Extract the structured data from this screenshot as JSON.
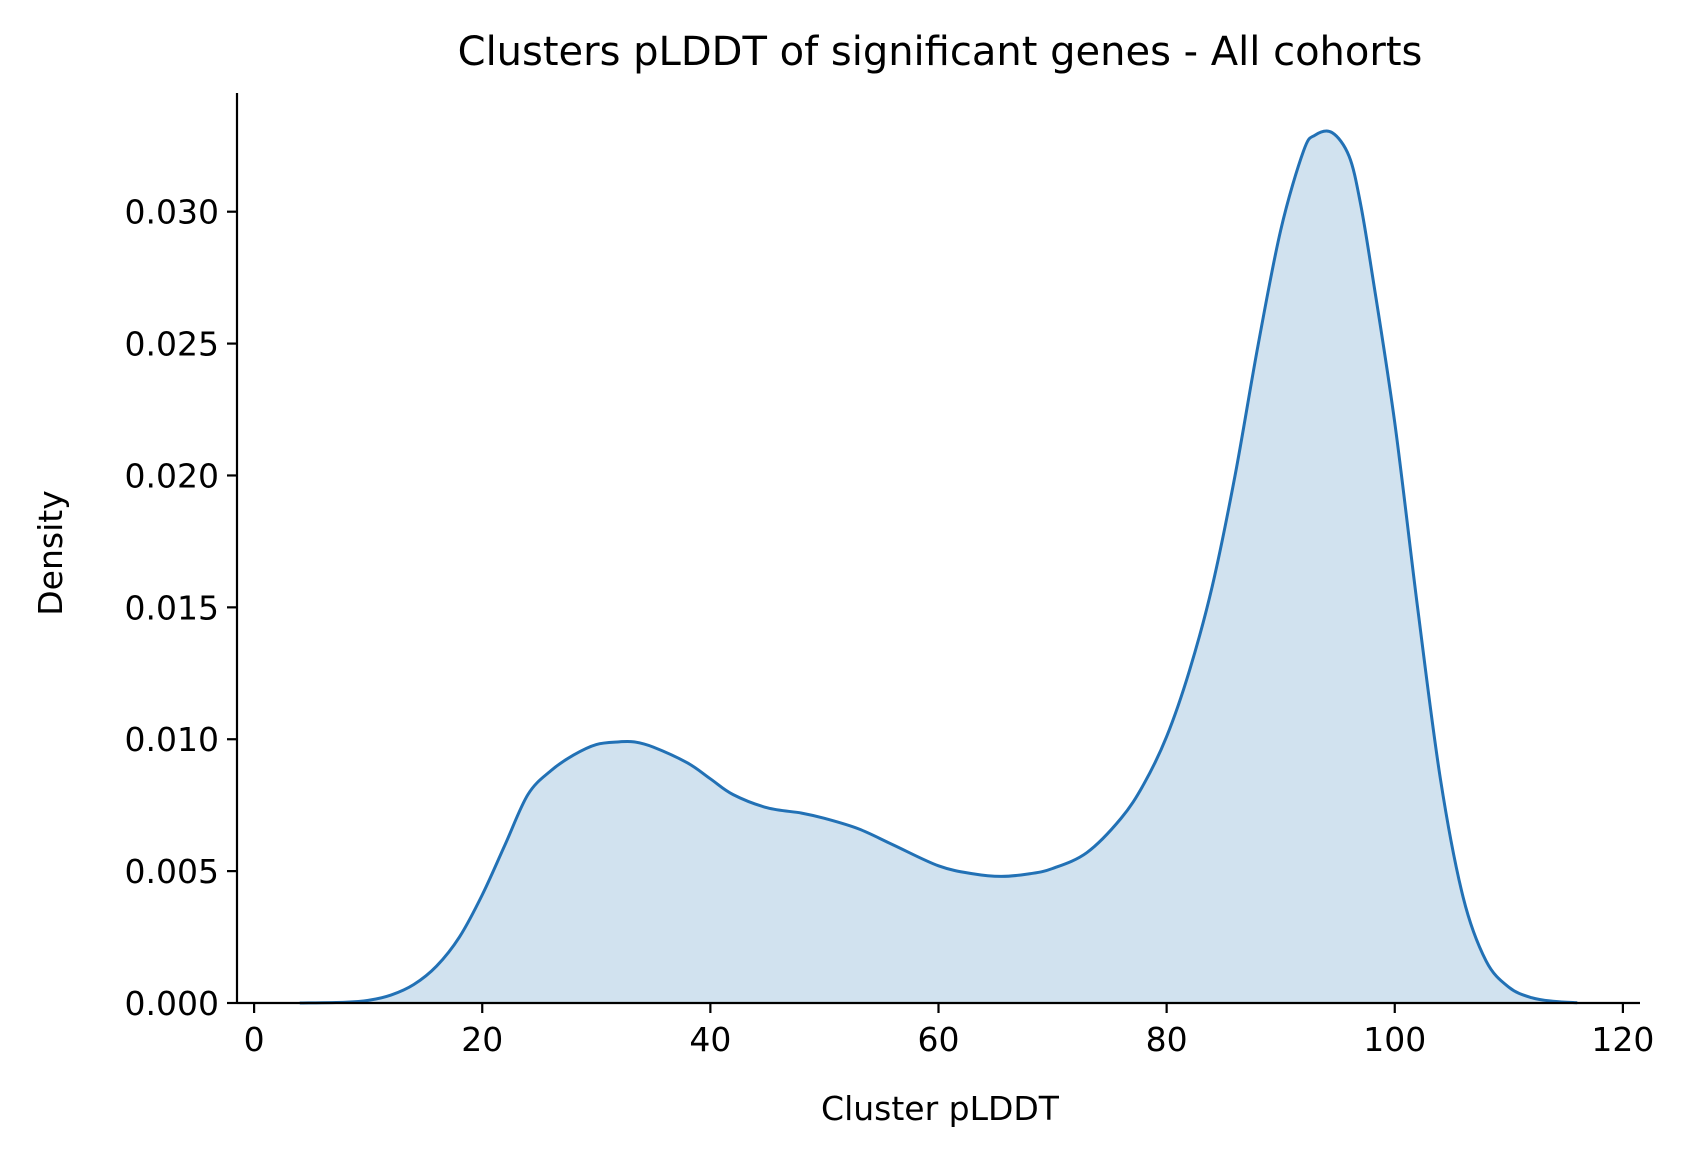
{
  "chart_data": {
    "type": "area",
    "title": "Clusters pLDDT of significant genes - All cohorts",
    "xlabel": "Cluster pLDDT",
    "ylabel": "Density",
    "xlim": [
      -1.5,
      121.5
    ],
    "ylim": [
      0,
      0.0345
    ],
    "xticks": [
      0,
      20,
      40,
      60,
      80,
      100,
      120
    ],
    "xtick_labels": [
      "0",
      "20",
      "40",
      "60",
      "80",
      "100",
      "120"
    ],
    "yticks": [
      0,
      0.005,
      0.01,
      0.015,
      0.02,
      0.025,
      0.03
    ],
    "ytick_labels": [
      "0.000",
      "0.005",
      "0.010",
      "0.015",
      "0.020",
      "0.025",
      "0.030"
    ],
    "grid": false,
    "legend": "none",
    "colors": {
      "line": "#2271b5",
      "fill": "#d1e2ef"
    },
    "series": [
      {
        "x": [
          4,
          8,
          10,
          12,
          14,
          16,
          18,
          20,
          22,
          24,
          26,
          28,
          30,
          32,
          33.3,
          35,
          38,
          40,
          42,
          45,
          48,
          50,
          53,
          56,
          60,
          63,
          65.5,
          68,
          70,
          73,
          76,
          78,
          80,
          82,
          84,
          86,
          88,
          90,
          92,
          93,
          94.5,
          96,
          97,
          98,
          100,
          102,
          104,
          106,
          108,
          110,
          112,
          114,
          116
        ],
        "y": [
          0.0,
          3e-05,
          0.0001,
          0.0003,
          0.0007,
          0.0014,
          0.0025,
          0.0041,
          0.006,
          0.0079,
          0.0088,
          0.0094,
          0.0098,
          0.0099,
          0.0099,
          0.0097,
          0.0091,
          0.0085,
          0.0079,
          0.0074,
          0.0072,
          0.007,
          0.0066,
          0.006,
          0.0052,
          0.0049,
          0.0048,
          0.0049,
          0.0051,
          0.0057,
          0.007,
          0.0083,
          0.0101,
          0.0126,
          0.0158,
          0.02,
          0.0249,
          0.0293,
          0.0323,
          0.0329,
          0.033,
          0.0321,
          0.0303,
          0.0277,
          0.022,
          0.015,
          0.0085,
          0.004,
          0.0016,
          0.0006,
          0.0002,
          6e-05,
          1e-05
        ]
      }
    ]
  }
}
